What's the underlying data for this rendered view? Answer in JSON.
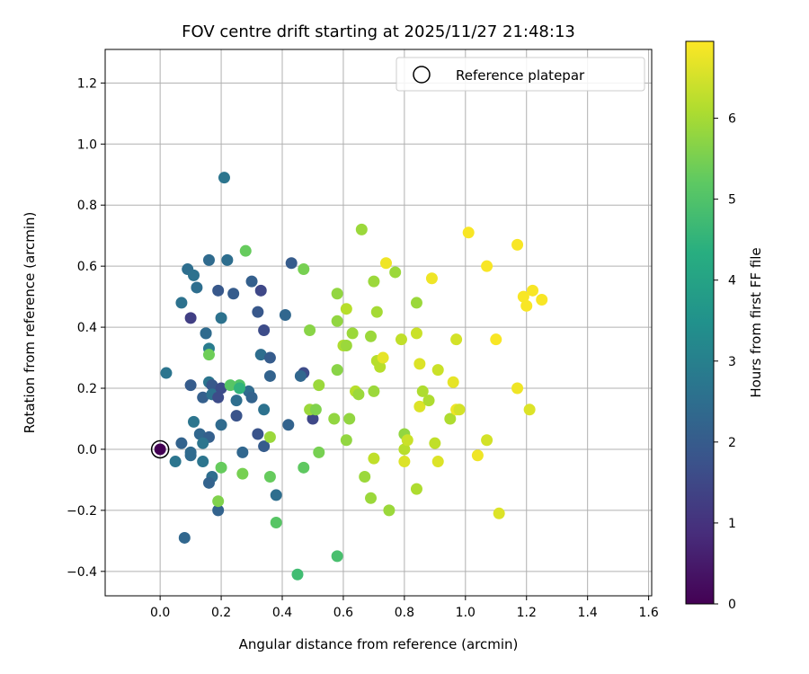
{
  "chart_data": {
    "type": "scatter",
    "title": "FOV centre drift starting at 2025/11/27 21:48:13",
    "xlabel": "Angular distance from reference (arcmin)",
    "ylabel": "Rotation from reference (arcmin)",
    "xlim": [
      -0.18,
      1.61
    ],
    "ylim": [
      -0.48,
      1.31
    ],
    "xticks": [
      0.0,
      0.2,
      0.4,
      0.6,
      0.8,
      1.0,
      1.2,
      1.4,
      1.6
    ],
    "xtick_labels": [
      "0.0",
      "0.2",
      "0.4",
      "0.6",
      "0.8",
      "1.0",
      "1.2",
      "1.4",
      "1.6"
    ],
    "yticks": [
      -0.4,
      -0.2,
      0.0,
      0.2,
      0.4,
      0.6,
      0.8,
      1.0,
      1.2
    ],
    "ytick_labels": [
      "−0.4",
      "−0.2",
      "0.0",
      "0.2",
      "0.4",
      "0.6",
      "0.8",
      "1.0",
      "1.2"
    ],
    "grid": true,
    "legend": {
      "location": "top-right",
      "entries": [
        {
          "label": "Reference platepar",
          "marker": "open-circle"
        }
      ]
    },
    "reference_point": {
      "x": 0.0,
      "y": 0.0,
      "c": 0.0
    },
    "colorbar": {
      "label": "Hours from first FF file",
      "colormap": "viridis",
      "range": [
        0,
        6.95
      ],
      "ticks": [
        0,
        1,
        2,
        3,
        4,
        5,
        6
      ],
      "tick_labels": [
        "0",
        "1",
        "2",
        "3",
        "4",
        "5",
        "6"
      ]
    },
    "points": [
      {
        "x": 0.0,
        "y": 0.0,
        "c": 0.0
      },
      {
        "x": 0.09,
        "y": 0.59,
        "c": 2.5
      },
      {
        "x": 0.11,
        "y": 0.57,
        "c": 2.6
      },
      {
        "x": 0.12,
        "y": 0.53,
        "c": 2.5
      },
      {
        "x": 0.16,
        "y": 0.62,
        "c": 2.4
      },
      {
        "x": 0.22,
        "y": 0.62,
        "c": 2.5
      },
      {
        "x": 0.07,
        "y": 0.48,
        "c": 2.6
      },
      {
        "x": 0.21,
        "y": 0.89,
        "c": 2.7
      },
      {
        "x": 0.19,
        "y": 0.52,
        "c": 1.9
      },
      {
        "x": 0.24,
        "y": 0.51,
        "c": 2.0
      },
      {
        "x": 0.3,
        "y": 0.55,
        "c": 2.1
      },
      {
        "x": 0.33,
        "y": 0.52,
        "c": 1.5
      },
      {
        "x": 0.43,
        "y": 0.61,
        "c": 2.0
      },
      {
        "x": 0.1,
        "y": 0.43,
        "c": 1.3
      },
      {
        "x": 0.2,
        "y": 0.43,
        "c": 2.6
      },
      {
        "x": 0.32,
        "y": 0.45,
        "c": 1.9
      },
      {
        "x": 0.41,
        "y": 0.44,
        "c": 2.3
      },
      {
        "x": 0.15,
        "y": 0.38,
        "c": 2.7
      },
      {
        "x": 0.15,
        "y": 0.38,
        "c": 2.4
      },
      {
        "x": 0.34,
        "y": 0.39,
        "c": 1.6
      },
      {
        "x": 0.16,
        "y": 0.33,
        "c": 2.9
      },
      {
        "x": 0.33,
        "y": 0.31,
        "c": 2.5
      },
      {
        "x": 0.36,
        "y": 0.3,
        "c": 2.0
      },
      {
        "x": 0.02,
        "y": 0.25,
        "c": 2.7
      },
      {
        "x": 0.36,
        "y": 0.24,
        "c": 2.2
      },
      {
        "x": 0.47,
        "y": 0.25,
        "c": 1.6
      },
      {
        "x": 0.46,
        "y": 0.24,
        "c": 2.3
      },
      {
        "x": 0.1,
        "y": 0.21,
        "c": 2.0
      },
      {
        "x": 0.16,
        "y": 0.22,
        "c": 2.7
      },
      {
        "x": 0.17,
        "y": 0.21,
        "c": 1.9
      },
      {
        "x": 0.14,
        "y": 0.17,
        "c": 2.1
      },
      {
        "x": 0.17,
        "y": 0.18,
        "c": 2.6
      },
      {
        "x": 0.2,
        "y": 0.2,
        "c": 1.6
      },
      {
        "x": 0.19,
        "y": 0.17,
        "c": 1.6
      },
      {
        "x": 0.25,
        "y": 0.16,
        "c": 2.5
      },
      {
        "x": 0.29,
        "y": 0.19,
        "c": 2.4
      },
      {
        "x": 0.3,
        "y": 0.17,
        "c": 2.2
      },
      {
        "x": 0.34,
        "y": 0.13,
        "c": 2.6
      },
      {
        "x": 0.25,
        "y": 0.11,
        "c": 1.8
      },
      {
        "x": 0.11,
        "y": 0.09,
        "c": 2.7
      },
      {
        "x": 0.2,
        "y": 0.08,
        "c": 2.4
      },
      {
        "x": 0.42,
        "y": 0.08,
        "c": 2.2
      },
      {
        "x": 0.5,
        "y": 0.1,
        "c": 1.5
      },
      {
        "x": 0.13,
        "y": 0.05,
        "c": 2.3
      },
      {
        "x": 0.16,
        "y": 0.04,
        "c": 2.1
      },
      {
        "x": 0.32,
        "y": 0.05,
        "c": 1.8
      },
      {
        "x": 0.07,
        "y": 0.02,
        "c": 2.2
      },
      {
        "x": 0.14,
        "y": 0.02,
        "c": 2.7
      },
      {
        "x": 0.34,
        "y": 0.01,
        "c": 2.0
      },
      {
        "x": 0.1,
        "y": -0.01,
        "c": 2.4
      },
      {
        "x": 0.27,
        "y": -0.01,
        "c": 2.3
      },
      {
        "x": 0.05,
        "y": -0.04,
        "c": 2.7
      },
      {
        "x": 0.1,
        "y": -0.02,
        "c": 2.4
      },
      {
        "x": 0.14,
        "y": -0.04,
        "c": 2.7
      },
      {
        "x": 0.17,
        "y": -0.09,
        "c": 2.5
      },
      {
        "x": 0.16,
        "y": -0.11,
        "c": 2.2
      },
      {
        "x": 0.38,
        "y": -0.15,
        "c": 2.5
      },
      {
        "x": 0.19,
        "y": -0.2,
        "c": 2.2
      },
      {
        "x": 0.08,
        "y": -0.29,
        "c": 2.3
      },
      {
        "x": 0.28,
        "y": 0.65,
        "c": 5.3
      },
      {
        "x": 0.26,
        "y": 0.21,
        "c": 5.0
      },
      {
        "x": 0.23,
        "y": 0.21,
        "c": 5.1
      },
      {
        "x": 0.26,
        "y": 0.2,
        "c": 4.5
      },
      {
        "x": 0.16,
        "y": 0.31,
        "c": 5.4
      },
      {
        "x": 0.36,
        "y": 0.04,
        "c": 5.9
      },
      {
        "x": 0.2,
        "y": -0.06,
        "c": 5.3
      },
      {
        "x": 0.27,
        "y": -0.08,
        "c": 5.5
      },
      {
        "x": 0.36,
        "y": -0.09,
        "c": 5.3
      },
      {
        "x": 0.19,
        "y": -0.17,
        "c": 5.6
      },
      {
        "x": 0.38,
        "y": -0.24,
        "c": 5.1
      },
      {
        "x": 0.45,
        "y": -0.41,
        "c": 4.8
      },
      {
        "x": 0.58,
        "y": -0.35,
        "c": 4.9
      },
      {
        "x": 0.47,
        "y": -0.06,
        "c": 5.2
      },
      {
        "x": 0.52,
        "y": -0.01,
        "c": 5.5
      },
      {
        "x": 0.47,
        "y": 0.59,
        "c": 5.5
      },
      {
        "x": 0.49,
        "y": 0.13,
        "c": 5.9
      },
      {
        "x": 0.51,
        "y": 0.13,
        "c": 5.6
      },
      {
        "x": 0.52,
        "y": 0.21,
        "c": 5.9
      },
      {
        "x": 0.49,
        "y": 0.39,
        "c": 5.7
      },
      {
        "x": 0.57,
        "y": 0.1,
        "c": 5.8
      },
      {
        "x": 0.58,
        "y": 0.26,
        "c": 5.7
      },
      {
        "x": 0.58,
        "y": 0.42,
        "c": 5.8
      },
      {
        "x": 0.58,
        "y": 0.51,
        "c": 5.8
      },
      {
        "x": 0.6,
        "y": 0.34,
        "c": 6.1
      },
      {
        "x": 0.61,
        "y": 0.46,
        "c": 6.2
      },
      {
        "x": 0.61,
        "y": 0.34,
        "c": 5.9
      },
      {
        "x": 0.61,
        "y": 0.03,
        "c": 5.8
      },
      {
        "x": 0.62,
        "y": 0.1,
        "c": 5.8
      },
      {
        "x": 0.63,
        "y": 0.38,
        "c": 5.9
      },
      {
        "x": 0.64,
        "y": 0.19,
        "c": 6.2
      },
      {
        "x": 0.65,
        "y": 0.18,
        "c": 5.9
      },
      {
        "x": 0.66,
        "y": 0.72,
        "c": 5.9
      },
      {
        "x": 0.67,
        "y": -0.09,
        "c": 5.9
      },
      {
        "x": 0.69,
        "y": -0.16,
        "c": 5.9
      },
      {
        "x": 0.69,
        "y": 0.37,
        "c": 5.9
      },
      {
        "x": 0.7,
        "y": 0.55,
        "c": 5.9
      },
      {
        "x": 0.7,
        "y": 0.19,
        "c": 5.9
      },
      {
        "x": 0.7,
        "y": -0.03,
        "c": 6.3
      },
      {
        "x": 0.71,
        "y": 0.29,
        "c": 6.2
      },
      {
        "x": 0.71,
        "y": 0.45,
        "c": 6.0
      },
      {
        "x": 0.72,
        "y": 0.27,
        "c": 6.2
      },
      {
        "x": 0.73,
        "y": 0.3,
        "c": 6.7
      },
      {
        "x": 0.74,
        "y": 0.61,
        "c": 6.8
      },
      {
        "x": 0.75,
        "y": -0.2,
        "c": 5.9
      },
      {
        "x": 0.77,
        "y": 0.58,
        "c": 5.9
      },
      {
        "x": 0.79,
        "y": 0.36,
        "c": 6.3
      },
      {
        "x": 0.8,
        "y": 0.05,
        "c": 5.8
      },
      {
        "x": 0.8,
        "y": 0.0,
        "c": 6.2
      },
      {
        "x": 0.8,
        "y": -0.04,
        "c": 6.6
      },
      {
        "x": 0.81,
        "y": 0.03,
        "c": 6.4
      },
      {
        "x": 0.84,
        "y": 0.38,
        "c": 6.4
      },
      {
        "x": 0.84,
        "y": -0.13,
        "c": 6.1
      },
      {
        "x": 0.84,
        "y": 0.48,
        "c": 5.9
      },
      {
        "x": 0.85,
        "y": 0.28,
        "c": 6.6
      },
      {
        "x": 0.85,
        "y": 0.14,
        "c": 6.6
      },
      {
        "x": 0.86,
        "y": 0.19,
        "c": 6.1
      },
      {
        "x": 0.88,
        "y": 0.16,
        "c": 6.1
      },
      {
        "x": 0.89,
        "y": 0.56,
        "c": 6.8
      },
      {
        "x": 0.9,
        "y": 0.02,
        "c": 6.3
      },
      {
        "x": 0.91,
        "y": -0.04,
        "c": 6.6
      },
      {
        "x": 0.91,
        "y": 0.26,
        "c": 6.4
      },
      {
        "x": 0.95,
        "y": 0.1,
        "c": 6.1
      },
      {
        "x": 0.96,
        "y": 0.22,
        "c": 6.7
      },
      {
        "x": 0.97,
        "y": 0.13,
        "c": 6.8
      },
      {
        "x": 0.97,
        "y": 0.36,
        "c": 6.5
      },
      {
        "x": 0.98,
        "y": 0.13,
        "c": 6.5
      },
      {
        "x": 1.01,
        "y": 0.71,
        "c": 6.9
      },
      {
        "x": 1.04,
        "y": -0.02,
        "c": 6.8
      },
      {
        "x": 1.07,
        "y": 0.03,
        "c": 6.5
      },
      {
        "x": 1.07,
        "y": 0.6,
        "c": 6.9
      },
      {
        "x": 1.1,
        "y": 0.36,
        "c": 6.9
      },
      {
        "x": 1.11,
        "y": -0.21,
        "c": 6.6
      },
      {
        "x": 1.17,
        "y": 0.67,
        "c": 6.9
      },
      {
        "x": 1.17,
        "y": 0.2,
        "c": 6.8
      },
      {
        "x": 1.19,
        "y": 0.5,
        "c": 6.9
      },
      {
        "x": 1.2,
        "y": 0.47,
        "c": 6.9
      },
      {
        "x": 1.21,
        "y": 0.13,
        "c": 6.6
      },
      {
        "x": 1.22,
        "y": 0.52,
        "c": 6.9
      },
      {
        "x": 1.25,
        "y": 0.49,
        "c": 6.9
      }
    ]
  }
}
